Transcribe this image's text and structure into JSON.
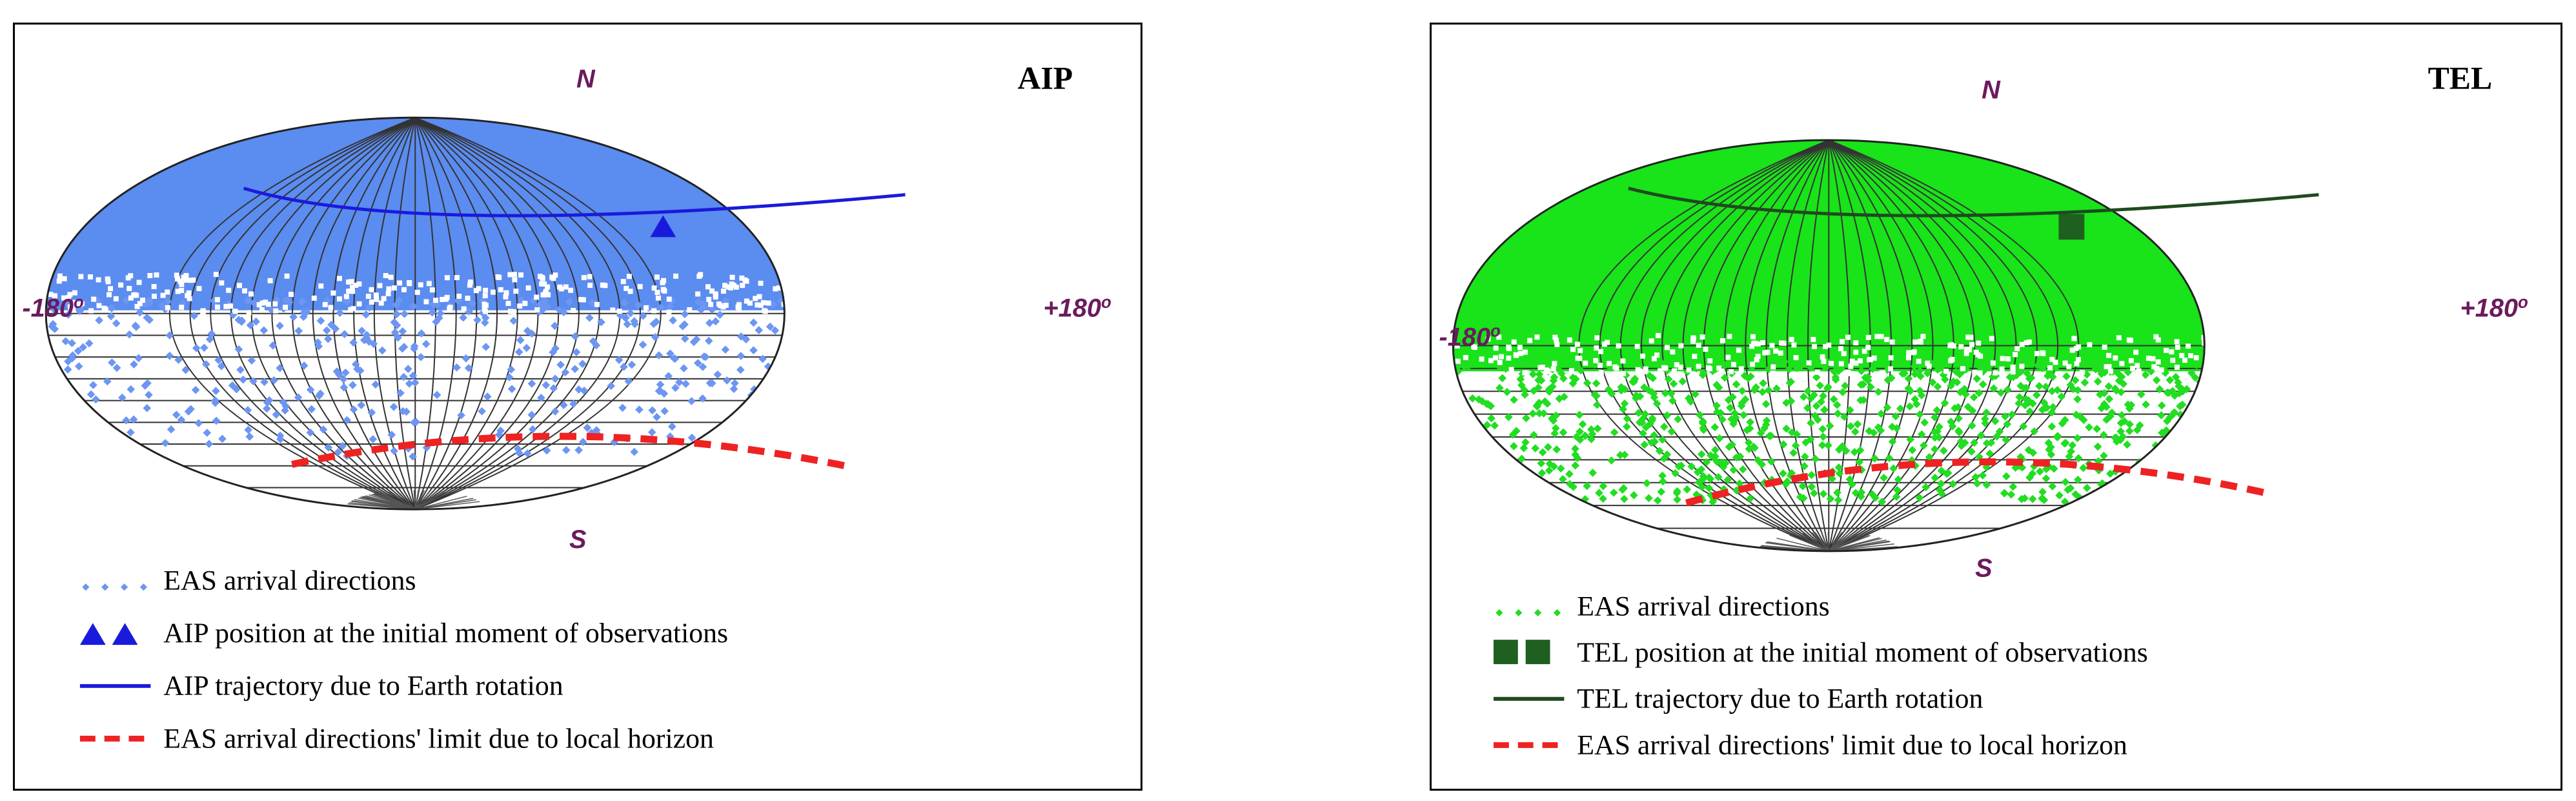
{
  "panels": [
    {
      "id": "aip",
      "label": "AIP",
      "north_label": "N",
      "south_label": "S",
      "left_label": "-180",
      "left_degree": "o",
      "right_label": "+180",
      "right_degree": "o",
      "fill_color": "#5b8cf0",
      "scatter_color": "#6d96f2",
      "marker_color": "#1a1adc",
      "trajectory_color": "#1a1adc",
      "horizon_color": "#ee2222",
      "marker_shape": "triangle",
      "legend": [
        {
          "symbol": "dots",
          "text": "EAS arrival directions"
        },
        {
          "symbol": "marker",
          "text": "AIP position at the initial moment of observations"
        },
        {
          "symbol": "line",
          "text": "AIP trajectory due to Earth rotation"
        },
        {
          "symbol": "dashed",
          "text": "EAS arrival directions'  limit due to local horizon"
        }
      ]
    },
    {
      "id": "tel",
      "label": "TEL",
      "north_label": "N",
      "south_label": "S",
      "left_label": "-180",
      "left_degree": "o",
      "right_label": "+180",
      "right_degree": "o",
      "fill_color": "#19e319",
      "scatter_color": "#22dd22",
      "marker_color": "#1f5f1f",
      "trajectory_color": "#1f4a1f",
      "horizon_color": "#ee2222",
      "marker_shape": "square",
      "legend": [
        {
          "symbol": "dots",
          "text": "EAS arrival directions"
        },
        {
          "symbol": "marker",
          "text": "TEL position at the initial moment of observations"
        },
        {
          "symbol": "line",
          "text": "TEL trajectory due to Earth rotation"
        },
        {
          "symbol": "dashed",
          "text": "EAS arrival directions'  limit due to local horizon"
        }
      ]
    }
  ]
}
